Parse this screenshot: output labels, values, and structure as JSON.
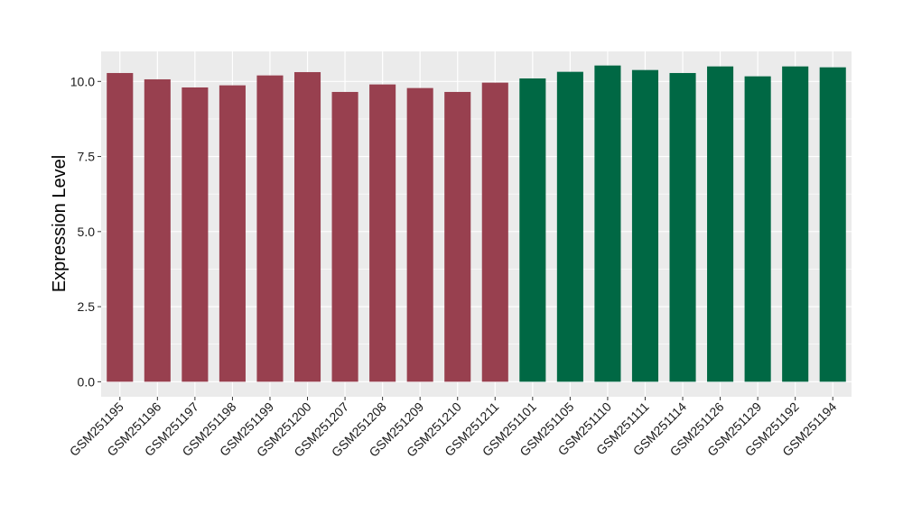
{
  "chart_data": {
    "type": "bar",
    "title": "",
    "xlabel": "",
    "ylabel": "Expression Level",
    "ylim": [
      -0.5,
      11.0
    ],
    "yticks": [
      0.0,
      2.5,
      5.0,
      7.5,
      10.0
    ],
    "ytick_labels": [
      "0.0",
      "2.5",
      "5.0",
      "7.5",
      "10.0"
    ],
    "grid": true,
    "legend": "none",
    "categories": [
      "GSM251195",
      "GSM251196",
      "GSM251197",
      "GSM251198",
      "GSM251199",
      "GSM251200",
      "GSM251207",
      "GSM251208",
      "GSM251209",
      "GSM251210",
      "GSM251211",
      "GSM251101",
      "GSM251105",
      "GSM251110",
      "GSM251111",
      "GSM251114",
      "GSM251126",
      "GSM251129",
      "GSM251192",
      "GSM251194"
    ],
    "values": [
      10.28,
      10.07,
      9.8,
      9.87,
      10.2,
      10.31,
      9.65,
      9.9,
      9.78,
      9.65,
      9.96,
      10.1,
      10.32,
      10.53,
      10.38,
      10.28,
      10.5,
      10.17,
      10.5,
      10.47
    ],
    "groups": [
      "a",
      "a",
      "a",
      "a",
      "a",
      "a",
      "a",
      "a",
      "a",
      "a",
      "a",
      "b",
      "b",
      "b",
      "b",
      "b",
      "b",
      "b",
      "b",
      "b"
    ],
    "colors": {
      "a": "#98404f",
      "b": "#006844"
    },
    "panel_color": "#ebebeb",
    "grid_color": "#ffffff"
  }
}
